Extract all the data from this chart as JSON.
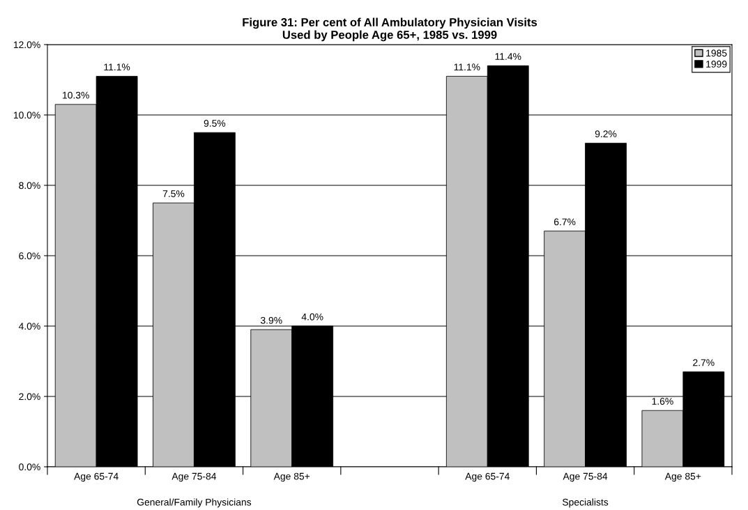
{
  "chart_data": {
    "type": "bar",
    "title": "Figure 31: Per cent of All Ambulatory Physician Visits\nUsed by People Age 65+, 1985 vs. 1999",
    "categories": [
      "Age 65-74",
      "Age 75-84",
      "Age 85+",
      null,
      "Age 65-74",
      "Age 75-84",
      "Age 85+"
    ],
    "series": [
      {
        "name": "1985",
        "color": "#c0c0c0",
        "values": [
          10.3,
          7.5,
          3.9,
          null,
          11.1,
          6.7,
          1.6
        ],
        "value_labels": [
          "10.3%",
          "7.5%",
          "3.9%",
          null,
          "11.1%",
          "6.7%",
          "1.6%"
        ]
      },
      {
        "name": "1999",
        "color": "#000000",
        "values": [
          11.1,
          9.5,
          4.0,
          null,
          11.4,
          9.2,
          2.7
        ],
        "value_labels": [
          "11.1%",
          "9.5%",
          "4.0%",
          null,
          "11.4%",
          "9.2%",
          "2.7%"
        ]
      }
    ],
    "annotations": [
      "General/Family Physicians",
      "Specialists"
    ],
    "ylim": [
      0,
      12
    ],
    "yticks": [
      {
        "value": 0,
        "label": "0.0%"
      },
      {
        "value": 2,
        "label": "2.0%"
      },
      {
        "value": 4,
        "label": "4.0%"
      },
      {
        "value": 6,
        "label": "6.0%"
      },
      {
        "value": 8,
        "label": "8.0%"
      },
      {
        "value": 10,
        "label": "10.0%"
      },
      {
        "value": 12,
        "label": "12.0%"
      }
    ],
    "grid": "y",
    "legend": "top right"
  }
}
